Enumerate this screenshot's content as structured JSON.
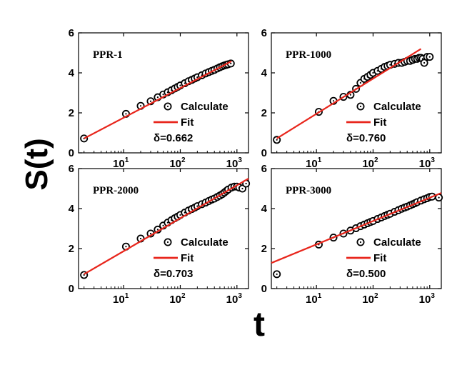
{
  "figure": {
    "ylabel": "S(t)",
    "xlabel": "t"
  },
  "colors": {
    "fit_line": "#e8261c",
    "marker_stroke": "#000000",
    "axis": "#000000",
    "background": "#ffffff"
  },
  "chart_data": [
    {
      "type": "scatter",
      "panel": "PPR-1",
      "x_scale": "log",
      "xlim": [
        1.6,
        1600
      ],
      "ylim": [
        0,
        6
      ],
      "yticks": [
        0,
        2,
        4,
        6
      ],
      "xticks": [
        10,
        100,
        1000
      ],
      "xtick_labels": [
        {
          "base": "10",
          "exp": "1"
        },
        {
          "base": "10",
          "exp": "2"
        },
        {
          "base": "10",
          "exp": "3"
        }
      ],
      "legend": {
        "calculate": "Calculate",
        "fit": "Fit",
        "delta": "δ=0.662"
      },
      "series": [
        {
          "name": "Calculate",
          "points": [
            [
              2,
              0.72
            ],
            [
              11,
              1.95
            ],
            [
              20,
              2.35
            ],
            [
              30,
              2.58
            ],
            [
              40,
              2.78
            ],
            [
              50,
              2.92
            ],
            [
              60,
              3.03
            ],
            [
              70,
              3.13
            ],
            [
              80,
              3.22
            ],
            [
              90,
              3.3
            ],
            [
              100,
              3.37
            ],
            [
              120,
              3.48
            ],
            [
              140,
              3.58
            ],
            [
              160,
              3.65
            ],
            [
              180,
              3.72
            ],
            [
              200,
              3.78
            ],
            [
              240,
              3.88
            ],
            [
              280,
              3.97
            ],
            [
              320,
              4.04
            ],
            [
              360,
              4.1
            ],
            [
              400,
              4.15
            ],
            [
              450,
              4.22
            ],
            [
              500,
              4.28
            ],
            [
              550,
              4.33
            ],
            [
              600,
              4.37
            ],
            [
              650,
              4.4
            ],
            [
              700,
              4.43
            ],
            [
              780,
              4.47
            ]
          ]
        },
        {
          "name": "Fit",
          "points": [
            [
              2,
              0.72
            ],
            [
              800,
              4.58
            ]
          ]
        }
      ]
    },
    {
      "type": "scatter",
      "panel": "PPR-1000",
      "x_scale": "log",
      "xlim": [
        1.6,
        1600
      ],
      "ylim": [
        0,
        6
      ],
      "yticks": [
        0,
        2,
        4,
        6
      ],
      "xticks": [
        10,
        100,
        1000
      ],
      "xtick_labels": [
        {
          "base": "10",
          "exp": "1"
        },
        {
          "base": "10",
          "exp": "2"
        },
        {
          "base": "10",
          "exp": "3"
        }
      ],
      "legend": {
        "calculate": "Calculate",
        "fit": "Fit",
        "delta": "δ=0.760"
      },
      "series": [
        {
          "name": "Calculate",
          "points": [
            [
              2,
              0.65
            ],
            [
              11,
              2.05
            ],
            [
              20,
              2.6
            ],
            [
              30,
              2.8
            ],
            [
              40,
              2.9
            ],
            [
              50,
              3.2
            ],
            [
              60,
              3.5
            ],
            [
              70,
              3.7
            ],
            [
              80,
              3.8
            ],
            [
              90,
              3.9
            ],
            [
              100,
              4.0
            ],
            [
              120,
              4.1
            ],
            [
              140,
              4.2
            ],
            [
              160,
              4.3
            ],
            [
              180,
              4.35
            ],
            [
              200,
              4.4
            ],
            [
              240,
              4.45
            ],
            [
              280,
              4.5
            ],
            [
              320,
              4.5
            ],
            [
              360,
              4.55
            ],
            [
              400,
              4.6
            ],
            [
              450,
              4.6
            ],
            [
              500,
              4.65
            ],
            [
              550,
              4.7
            ],
            [
              600,
              4.7
            ],
            [
              650,
              4.75
            ],
            [
              700,
              4.75
            ],
            [
              750,
              4.7
            ],
            [
              800,
              4.5
            ],
            [
              900,
              4.8
            ],
            [
              1000,
              4.8
            ]
          ]
        },
        {
          "name": "Fit",
          "points": [
            [
              2,
              0.72
            ],
            [
              700,
              5.2
            ]
          ]
        }
      ]
    },
    {
      "type": "scatter",
      "panel": "PPR-2000",
      "x_scale": "log",
      "xlim": [
        1.6,
        1600
      ],
      "ylim": [
        0,
        6
      ],
      "yticks": [
        0,
        2,
        4,
        6
      ],
      "xticks": [
        10,
        100,
        1000
      ],
      "xtick_labels": [
        {
          "base": "10",
          "exp": "1"
        },
        {
          "base": "10",
          "exp": "2"
        },
        {
          "base": "10",
          "exp": "3"
        }
      ],
      "legend": {
        "calculate": "Calculate",
        "fit": "Fit",
        "delta": "δ=0.703"
      },
      "series": [
        {
          "name": "Calculate",
          "points": [
            [
              2,
              0.68
            ],
            [
              11,
              2.1
            ],
            [
              20,
              2.5
            ],
            [
              30,
              2.75
            ],
            [
              40,
              2.95
            ],
            [
              50,
              3.15
            ],
            [
              60,
              3.3
            ],
            [
              70,
              3.42
            ],
            [
              80,
              3.52
            ],
            [
              90,
              3.6
            ],
            [
              100,
              3.68
            ],
            [
              120,
              3.8
            ],
            [
              140,
              3.9
            ],
            [
              160,
              3.98
            ],
            [
              180,
              4.05
            ],
            [
              200,
              4.12
            ],
            [
              240,
              4.22
            ],
            [
              280,
              4.3
            ],
            [
              320,
              4.38
            ],
            [
              360,
              4.45
            ],
            [
              400,
              4.5
            ],
            [
              450,
              4.58
            ],
            [
              500,
              4.65
            ],
            [
              550,
              4.72
            ],
            [
              600,
              4.8
            ],
            [
              650,
              4.88
            ],
            [
              700,
              4.95
            ],
            [
              800,
              5.05
            ],
            [
              900,
              5.1
            ],
            [
              1000,
              5.1
            ],
            [
              1100,
              5.05
            ],
            [
              1250,
              5.0
            ],
            [
              1450,
              5.25
            ]
          ]
        },
        {
          "name": "Fit",
          "points": [
            [
              2,
              0.72
            ],
            [
              1600,
              5.5
            ]
          ]
        }
      ]
    },
    {
      "type": "scatter",
      "panel": "PPR-3000",
      "x_scale": "log",
      "xlim": [
        1.6,
        1600
      ],
      "ylim": [
        0,
        6
      ],
      "yticks": [
        0,
        2,
        4,
        6
      ],
      "xticks": [
        10,
        100,
        1000
      ],
      "xtick_labels": [
        {
          "base": "10",
          "exp": "1"
        },
        {
          "base": "10",
          "exp": "2"
        },
        {
          "base": "10",
          "exp": "3"
        }
      ],
      "legend": {
        "calculate": "Calculate",
        "fit": "Fit",
        "delta": "δ=0.500"
      },
      "series": [
        {
          "name": "Calculate",
          "points": [
            [
              2,
              0.72
            ],
            [
              11,
              2.2
            ],
            [
              20,
              2.55
            ],
            [
              30,
              2.75
            ],
            [
              40,
              2.9
            ],
            [
              50,
              3.02
            ],
            [
              60,
              3.12
            ],
            [
              70,
              3.2
            ],
            [
              80,
              3.27
            ],
            [
              90,
              3.33
            ],
            [
              100,
              3.38
            ],
            [
              120,
              3.48
            ],
            [
              140,
              3.56
            ],
            [
              160,
              3.63
            ],
            [
              180,
              3.69
            ],
            [
              200,
              3.74
            ],
            [
              240,
              3.84
            ],
            [
              280,
              3.92
            ],
            [
              320,
              3.99
            ],
            [
              360,
              4.05
            ],
            [
              400,
              4.1
            ],
            [
              450,
              4.16
            ],
            [
              500,
              4.22
            ],
            [
              550,
              4.27
            ],
            [
              600,
              4.32
            ],
            [
              700,
              4.4
            ],
            [
              800,
              4.47
            ],
            [
              900,
              4.52
            ],
            [
              1000,
              4.58
            ],
            [
              1100,
              4.6
            ],
            [
              1450,
              4.55
            ]
          ]
        },
        {
          "name": "Fit",
          "points": [
            [
              1.6,
              1.28
            ],
            [
              1600,
              4.78
            ]
          ]
        }
      ]
    }
  ]
}
